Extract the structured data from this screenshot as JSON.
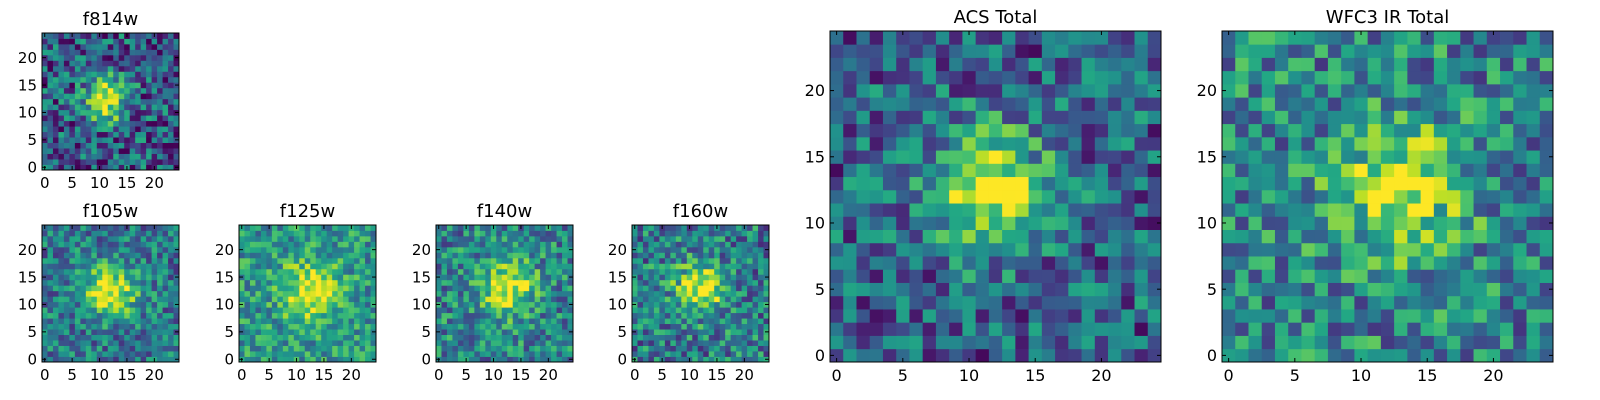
{
  "chart_data": {
    "type": "heatmap",
    "colormap": "viridis",
    "grid_size": 25,
    "x_ticks": [
      0,
      5,
      10,
      15,
      20
    ],
    "y_ticks": [
      0,
      5,
      10,
      15,
      20
    ],
    "axis_range": [
      -0.5,
      24.5
    ],
    "panels": [
      {
        "id": "f814w",
        "title": "f814w",
        "center": [
          11,
          12.5
        ],
        "peak_width": 2.8,
        "amplitude": 0.78,
        "noise": 0.34,
        "base": 0.28,
        "seed": 11
      },
      {
        "id": "f105w",
        "title": "f105w",
        "center": [
          12,
          12.5
        ],
        "peak_width": 3.2,
        "amplitude": 0.62,
        "noise": 0.26,
        "base": 0.4,
        "seed": 23
      },
      {
        "id": "f125w",
        "title": "f125w",
        "center": [
          12.5,
          12.5
        ],
        "peak_width": 3.6,
        "amplitude": 0.5,
        "noise": 0.24,
        "base": 0.52,
        "seed": 37
      },
      {
        "id": "f140w",
        "title": "f140w",
        "center": [
          12.5,
          13
        ],
        "peak_width": 3.4,
        "amplitude": 0.55,
        "noise": 0.28,
        "base": 0.45,
        "seed": 41
      },
      {
        "id": "f160w",
        "title": "f160w",
        "center": [
          12,
          13
        ],
        "peak_width": 3.2,
        "amplitude": 0.58,
        "noise": 0.3,
        "base": 0.42,
        "seed": 53
      },
      {
        "id": "acs-total",
        "title": "ACS Total",
        "center": [
          11.5,
          12.5
        ],
        "peak_width": 3.0,
        "amplitude": 0.72,
        "noise": 0.3,
        "base": 0.32,
        "seed": 67
      },
      {
        "id": "wfc3-ir-total",
        "title": "WFC3 IR Total",
        "center": [
          13,
          12.5
        ],
        "peak_width": 3.4,
        "amplitude": 0.5,
        "noise": 0.3,
        "base": 0.45,
        "seed": 79
      }
    ]
  }
}
